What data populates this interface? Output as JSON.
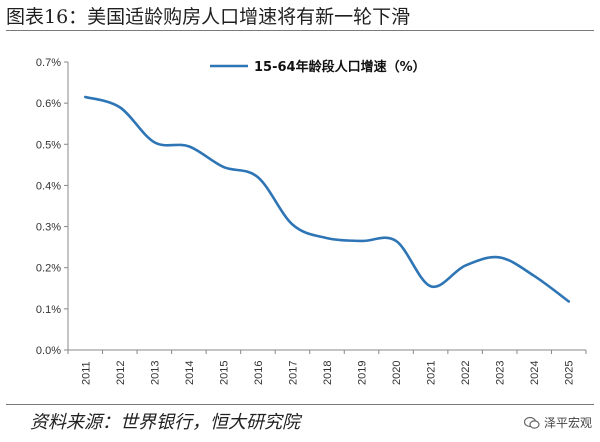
{
  "header": {
    "title": "图表16：美国适龄购房人口增速将有新一轮下滑"
  },
  "footer": {
    "source": "资料来源：世界银行，恒大研究院",
    "watermark": "泽平宏观"
  },
  "chart_data": {
    "type": "line",
    "title": "",
    "xlabel": "",
    "ylabel": "",
    "x": [
      "2011",
      "2012",
      "2013",
      "2014",
      "2015",
      "2016",
      "2017",
      "2018",
      "2019",
      "2020",
      "2021",
      "2022",
      "2023",
      "2024",
      "2025"
    ],
    "series": [
      {
        "name": "15-64年龄段人口增速（%）",
        "values": [
          0.615,
          0.59,
          0.505,
          0.495,
          0.445,
          0.42,
          0.305,
          0.272,
          0.265,
          0.265,
          0.155,
          0.205,
          0.225,
          0.18,
          0.118
        ]
      }
    ],
    "ylim": [
      0,
      0.7
    ],
    "yticks": [
      "0.0%",
      "0.1%",
      "0.2%",
      "0.3%",
      "0.4%",
      "0.5%",
      "0.6%",
      "0.7%"
    ],
    "grid": false,
    "legend": "top-center",
    "line_color": "#2e75b6"
  }
}
